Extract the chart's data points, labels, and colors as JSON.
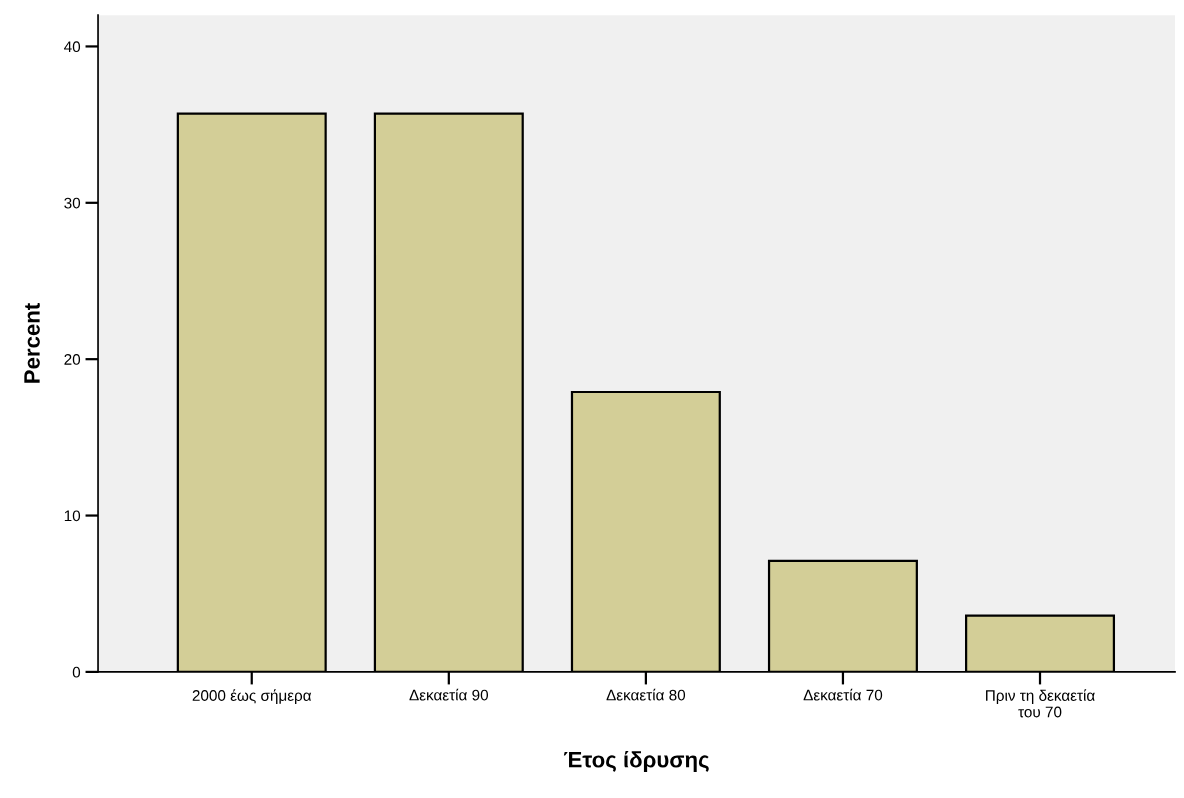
{
  "chart_data": {
    "type": "bar",
    "xlabel": "Έτος ίδρυσης",
    "ylabel": "Percent",
    "categories": [
      "2000 έως σήμερα",
      "Δεκαετία 90",
      "Δεκαετία 80",
      "Δεκαετία 70",
      "Πριν τη δεκαετία\nτου 70"
    ],
    "values": [
      35.7,
      35.7,
      17.9,
      7.1,
      3.6
    ],
    "color": "#d3ce97",
    "ylim": [
      0,
      42
    ],
    "yticks": [
      0,
      10,
      20,
      30,
      40
    ],
    "grid": false
  }
}
